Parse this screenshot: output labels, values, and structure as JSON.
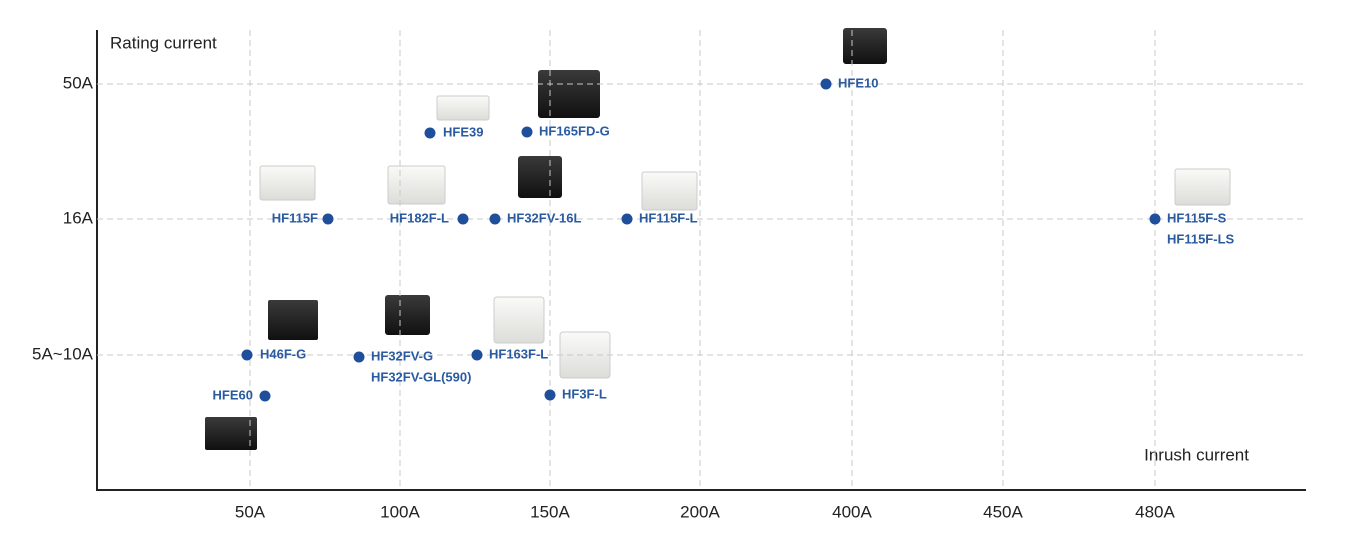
{
  "axes": {
    "y_title": "Rating current",
    "x_title": "Inrush current",
    "x_labels": [
      "50A",
      "100A",
      "150A",
      "200A",
      "400A",
      "450A",
      "480A"
    ],
    "y_labels": [
      "50A",
      "16A",
      "5A~10A"
    ]
  },
  "products": [
    [
      "HFE10"
    ],
    [
      "HFE39"
    ],
    [
      "HF165FD-G"
    ],
    [
      "HF115F"
    ],
    [
      "HF182F-L"
    ],
    [
      "HF32FV-16L"
    ],
    [
      "HF115F-L"
    ],
    [
      "HF115F-S",
      "HF115F-LS"
    ],
    [
      "H46F-G"
    ],
    [
      "HF32FV-G",
      "HF32FV-GL(590)"
    ],
    [
      "HF163F-L"
    ],
    [
      "HFE60"
    ],
    [
      "HF3F-L"
    ]
  ]
}
